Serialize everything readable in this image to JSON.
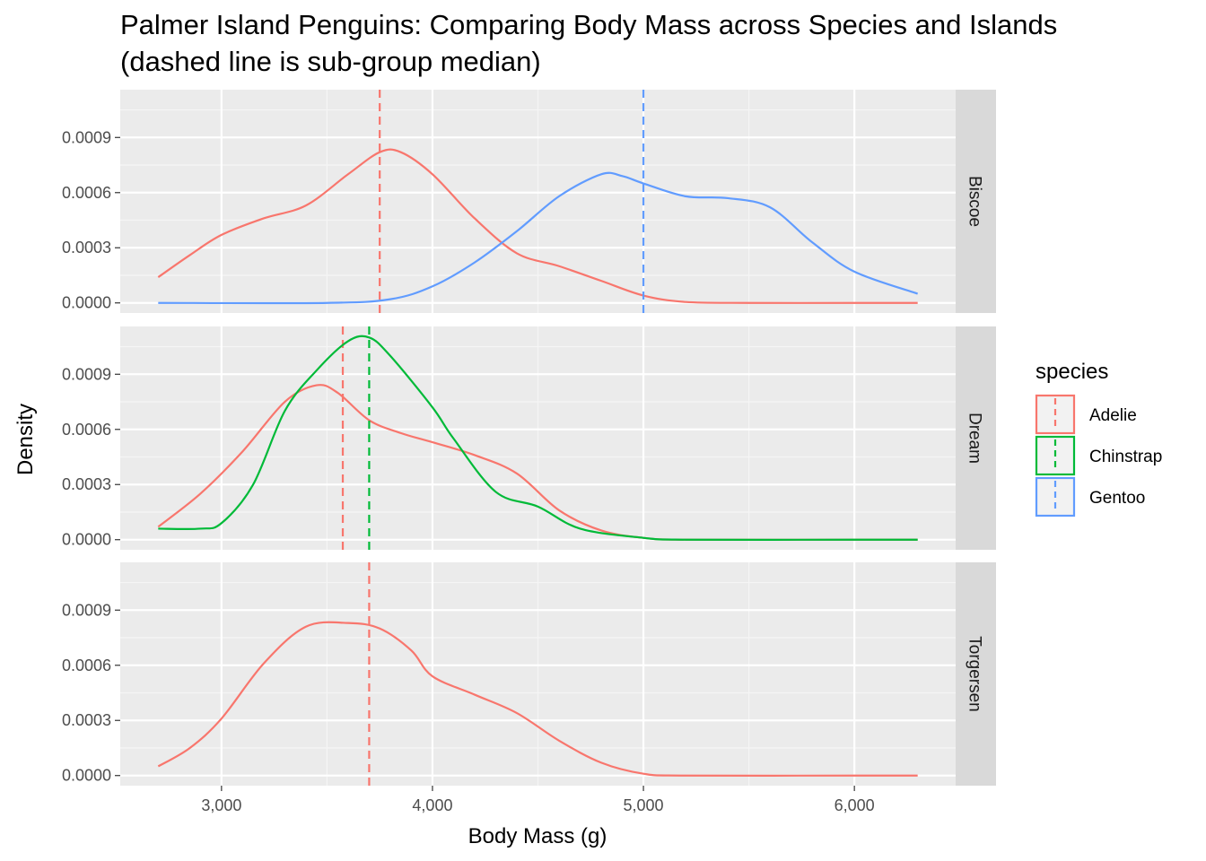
{
  "chart_data": {
    "type": "line",
    "title": "Palmer Island Penguins: Comparing Body Mass across Species and Islands",
    "subtitle": "(dashed line is sub-group median)",
    "xlabel": "Body Mass (g)",
    "ylabel": "Density",
    "xlim": [
      2520,
      6480
    ],
    "ylim": [
      -5.5e-05,
      0.00116
    ],
    "x_ticks": [
      3000,
      4000,
      5000,
      6000
    ],
    "x_tick_labels": [
      "3,000",
      "4,000",
      "5,000",
      "6,000"
    ],
    "y_ticks": [
      0,
      0.0003,
      0.0006,
      0.0009
    ],
    "y_tick_labels": [
      "0.0000",
      "0.0003",
      "0.0006",
      "0.0009"
    ],
    "grid": true,
    "legend": {
      "title": "species",
      "position": "right",
      "entries": [
        "Adelie",
        "Chinstrap",
        "Gentoo"
      ]
    },
    "colors": {
      "Adelie": "#F8766D",
      "Chinstrap": "#00BA38",
      "Gentoo": "#619CFF"
    },
    "facets": [
      {
        "island": "Biscoe",
        "series": [
          {
            "name": "Adelie",
            "median": 3750,
            "points": [
              [
                2700,
                0.00014
              ],
              [
                2850,
                0.00026
              ],
              [
                3000,
                0.00037
              ],
              [
                3200,
                0.00046
              ],
              [
                3400,
                0.00053
              ],
              [
                3600,
                0.0007
              ],
              [
                3750,
                0.00082
              ],
              [
                3850,
                0.00082
              ],
              [
                4000,
                0.0007
              ],
              [
                4200,
                0.00046
              ],
              [
                4400,
                0.00027
              ],
              [
                4600,
                0.0002
              ],
              [
                4800,
                0.00012
              ],
              [
                5000,
                4e-05
              ],
              [
                5200,
                5e-06
              ],
              [
                5500,
                0
              ],
              [
                6000,
                0
              ],
              [
                6300,
                0
              ]
            ]
          },
          {
            "name": "Gentoo",
            "median": 5000,
            "points": [
              [
                2700,
                0
              ],
              [
                3500,
                0
              ],
              [
                3800,
                2e-05
              ],
              [
                4000,
                9e-05
              ],
              [
                4200,
                0.00022
              ],
              [
                4400,
                0.00039
              ],
              [
                4600,
                0.00058
              ],
              [
                4800,
                0.0007
              ],
              [
                4900,
                0.00069
              ],
              [
                5000,
                0.00065
              ],
              [
                5200,
                0.00058
              ],
              [
                5400,
                0.00057
              ],
              [
                5600,
                0.00052
              ],
              [
                5800,
                0.00033
              ],
              [
                6000,
                0.00017
              ],
              [
                6300,
                5e-05
              ]
            ]
          }
        ]
      },
      {
        "island": "Dream",
        "series": [
          {
            "name": "Adelie",
            "median": 3575,
            "points": [
              [
                2700,
                7e-05
              ],
              [
                2900,
                0.00025
              ],
              [
                3100,
                0.00048
              ],
              [
                3300,
                0.00075
              ],
              [
                3450,
                0.00084
              ],
              [
                3550,
                0.0008
              ],
              [
                3700,
                0.00065
              ],
              [
                3850,
                0.00058
              ],
              [
                4000,
                0.00053
              ],
              [
                4200,
                0.00046
              ],
              [
                4400,
                0.00036
              ],
              [
                4600,
                0.00016
              ],
              [
                4800,
                5e-05
              ],
              [
                5000,
                1e-05
              ],
              [
                5200,
                0
              ],
              [
                6000,
                0
              ],
              [
                6300,
                0
              ]
            ]
          },
          {
            "name": "Chinstrap",
            "median": 3700,
            "points": [
              [
                2700,
                6e-05
              ],
              [
                2900,
                6e-05
              ],
              [
                3000,
                9e-05
              ],
              [
                3150,
                0.0003
              ],
              [
                3300,
                0.0007
              ],
              [
                3450,
                0.00092
              ],
              [
                3600,
                0.00108
              ],
              [
                3700,
                0.0011
              ],
              [
                3800,
                0.001
              ],
              [
                4000,
                0.00072
              ],
              [
                4100,
                0.00055
              ],
              [
                4300,
                0.00026
              ],
              [
                4500,
                0.00018
              ],
              [
                4700,
                6e-05
              ],
              [
                5000,
                1e-05
              ],
              [
                5200,
                0
              ],
              [
                6000,
                0
              ],
              [
                6300,
                0
              ]
            ]
          }
        ]
      },
      {
        "island": "Torgersen",
        "series": [
          {
            "name": "Adelie",
            "median": 3700,
            "points": [
              [
                2700,
                5e-05
              ],
              [
                2850,
                0.00015
              ],
              [
                3000,
                0.00031
              ],
              [
                3200,
                0.00061
              ],
              [
                3400,
                0.00081
              ],
              [
                3600,
                0.00083
              ],
              [
                3750,
                0.0008
              ],
              [
                3900,
                0.00068
              ],
              [
                4000,
                0.00054
              ],
              [
                4200,
                0.00044
              ],
              [
                4400,
                0.00034
              ],
              [
                4600,
                0.00019
              ],
              [
                4800,
                7e-05
              ],
              [
                5000,
                1e-05
              ],
              [
                5200,
                0
              ],
              [
                6000,
                0
              ],
              [
                6300,
                0
              ]
            ]
          }
        ]
      }
    ]
  }
}
